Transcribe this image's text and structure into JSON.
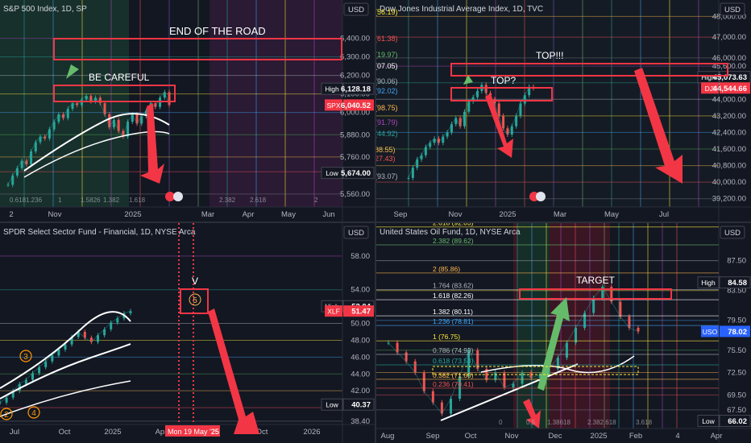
{
  "chart_data": [
    {
      "type": "line",
      "title": "S&P 500 Index, 1D, SP",
      "currency": "USD",
      "x_ticks": [
        "2",
        "Nov",
        "2025",
        "Mar",
        "Apr",
        "May",
        "Jun"
      ],
      "y_ticks": [
        5560,
        5680,
        5760,
        5880,
        6000,
        6100,
        6200,
        6300,
        6400
      ],
      "ylim": [
        5490,
        6520
      ],
      "badges": [
        {
          "label": "High",
          "value": "6,128.18",
          "y": 6128.18,
          "color": "#131722"
        },
        {
          "label": "SPX",
          "value": "6,040.52",
          "y": 6040.52,
          "color": "#f23645"
        },
        {
          "label": "Low",
          "value": "5,674.00",
          "y": 5674,
          "color": "#131722"
        }
      ],
      "fib_labels": [
        "0.618",
        "1.236",
        "1",
        "1.5826",
        "1.382",
        "1.618",
        "2.382",
        "2.618",
        "2"
      ],
      "annotations": [
        "END OF THE ROAD",
        "BE CAREFUL"
      ],
      "series": [
        {
          "name": "SPX",
          "x": [
            0,
            1,
            2,
            3,
            4,
            5,
            6,
            7,
            8,
            9,
            10,
            11,
            12,
            13,
            14,
            15,
            16,
            17,
            18,
            19,
            20,
            21,
            22,
            23,
            24,
            25,
            26,
            27,
            28,
            29,
            30,
            31,
            32,
            33,
            34,
            35
          ],
          "values": [
            5610,
            5660,
            5700,
            5740,
            5720,
            5790,
            5840,
            5870,
            5860,
            5910,
            5950,
            5990,
            5970,
            6020,
            6050,
            6040,
            6070,
            6090,
            6060,
            6080,
            6050,
            5990,
            5920,
            5960,
            5900,
            5870,
            5950,
            5990,
            5940,
            5980,
            6010,
            6050,
            6030,
            6080,
            6110,
            6040
          ]
        }
      ]
    },
    {
      "type": "line",
      "title": "Dow Jones Industrial Average Index, 1D, TVC",
      "currency": "USD",
      "x_ticks": [
        "Sep",
        "Nov",
        "2025",
        "Mar",
        "May",
        "Jul"
      ],
      "y_ticks": [
        39200,
        40000,
        40800,
        41600,
        42400,
        43200,
        44000,
        44800,
        45600,
        46000,
        47000,
        48000
      ],
      "ylim": [
        38800,
        48600
      ],
      "badges": [
        {
          "label": "High",
          "value": "45,073.63",
          "y": 45073.63,
          "color": "#131722"
        },
        {
          "label": "DJI",
          "value": "44,544.66",
          "y": 44544.66,
          "color": "#f23645"
        }
      ],
      "fib_labels": [
        "(56.19)",
        "(61.38)",
        "(19.97)",
        "(07.05)",
        "(90.06)",
        "(92.02)",
        "(98.75)",
        "(91.79)",
        "(44.92)",
        "88.55)",
        "27.43)",
        "(93.07)"
      ],
      "annotations": [
        "TOP!!!",
        "TOP?"
      ],
      "series": [
        {
          "name": "DJI",
          "x": [
            0,
            1,
            2,
            3,
            4,
            5,
            6,
            7,
            8,
            9,
            10,
            11,
            12,
            13,
            14,
            15,
            16,
            17,
            18,
            19,
            20,
            21,
            22,
            23,
            24,
            25,
            26,
            27,
            28,
            29
          ],
          "values": [
            40200,
            40700,
            41100,
            41300,
            41700,
            41900,
            42100,
            41900,
            42200,
            42400,
            42800,
            43100,
            42700,
            43400,
            43900,
            44100,
            44400,
            44700,
            44300,
            44000,
            43800,
            43200,
            42600,
            42300,
            42700,
            43200,
            43800,
            44200,
            44600,
            44544
          ]
        }
      ]
    },
    {
      "type": "line",
      "title": "SPDR Select Sector Fund - Financial, 1D, NYSE Arca",
      "currency": "USD",
      "x_ticks": [
        "Jul",
        "Oct",
        "2025",
        "Apr",
        "Jul",
        "Oct",
        "2026"
      ],
      "y_ticks": [
        38.4,
        40.0,
        42.0,
        44.0,
        46.0,
        48.0,
        50.0,
        54.0,
        58.0
      ],
      "ylim": [
        38.0,
        60.0
      ],
      "badges": [
        {
          "label": "High",
          "value": "52.04",
          "y": 52.04,
          "color": "#131722"
        },
        {
          "label": "XLF",
          "value": "51.47",
          "y": 51.47,
          "color": "#f23645"
        },
        {
          "label": "Low",
          "value": "40.37",
          "y": 40.37,
          "color": "#131722"
        }
      ],
      "date_label": "Mon 19 May '25",
      "date_label_suffix": "25",
      "annotations": [
        "V",
        "5",
        "3",
        "2",
        "4"
      ],
      "series": [
        {
          "name": "XLF",
          "x": [
            0,
            1,
            2,
            3,
            4,
            5,
            6,
            7,
            8,
            9,
            10,
            11,
            12,
            13,
            14,
            15,
            16,
            17,
            18,
            19,
            20
          ],
          "values": [
            40.6,
            41.2,
            42.0,
            42.8,
            43.3,
            44.1,
            44.8,
            45.5,
            46.2,
            46.9,
            47.5,
            48.4,
            49.0,
            48.3,
            47.8,
            48.6,
            49.3,
            50.1,
            50.6,
            51.2,
            51.47
          ]
        }
      ]
    },
    {
      "type": "line",
      "title": "United States Oil Fund, 1D, NYSE Arca",
      "currency": "USD",
      "x_ticks": [
        "Aug",
        "Sep",
        "Oct",
        "Nov",
        "Dec",
        "2025",
        "Feb",
        "4",
        "Apr"
      ],
      "y_ticks": [
        67.5,
        69.5,
        72.5,
        75.5,
        79.5,
        83.5,
        87.5
      ],
      "ylim": [
        65.0,
        92.0
      ],
      "badges": [
        {
          "label": "High",
          "value": "84.58",
          "y": 84.58,
          "color": "#131722"
        },
        {
          "label": "USO",
          "value": "78.02",
          "y": 78.02,
          "color": "#2962ff"
        },
        {
          "label": "Low",
          "value": "66.02",
          "y": 66.02,
          "color": "#131722"
        }
      ],
      "fib_levels": [
        {
          "label": "2.618 (92.03)",
          "y": 92.03
        },
        {
          "label": "2.382 (89.62)",
          "y": 89.62
        },
        {
          "label": "2 (85.86)",
          "y": 85.86
        },
        {
          "label": "1.764 (83.62)",
          "y": 83.62
        },
        {
          "label": "1.618 (82.26)",
          "y": 82.26
        },
        {
          "label": "1.382 (80.11)",
          "y": 80.11
        },
        {
          "label": "1.236 (78.81)",
          "y": 78.81
        },
        {
          "label": "1 (76.75)",
          "y": 76.75
        },
        {
          "label": "0.786 (74.93)",
          "y": 74.93
        },
        {
          "label": "0.618 (73.53)",
          "y": 73.53
        },
        {
          "label": "0.382 (71.60)",
          "y": 71.6
        },
        {
          "label": "0.236 (70.41)",
          "y": 70.41
        }
      ],
      "fib_bottom_labels": [
        "0",
        "0.5",
        "1.38618",
        "2.382.618",
        "3.618"
      ],
      "annotations": [
        "TARGET"
      ],
      "series": [
        {
          "name": "USO",
          "x": [
            0,
            1,
            2,
            3,
            4,
            5,
            6,
            7,
            8,
            9,
            10,
            11,
            12,
            13,
            14,
            15,
            16,
            17,
            18,
            19,
            20,
            21,
            22,
            23,
            24,
            25,
            26,
            27,
            28
          ],
          "values": [
            76.5,
            75.2,
            74.0,
            72.5,
            70.0,
            68.5,
            67.0,
            69.0,
            72.0,
            75.5,
            73.0,
            71.5,
            72.5,
            70.5,
            71.0,
            72.5,
            71.8,
            72.2,
            73.0,
            74.5,
            76.5,
            78.5,
            80.5,
            82.5,
            84.0,
            82.0,
            80.0,
            78.5,
            78.02
          ]
        }
      ]
    }
  ]
}
